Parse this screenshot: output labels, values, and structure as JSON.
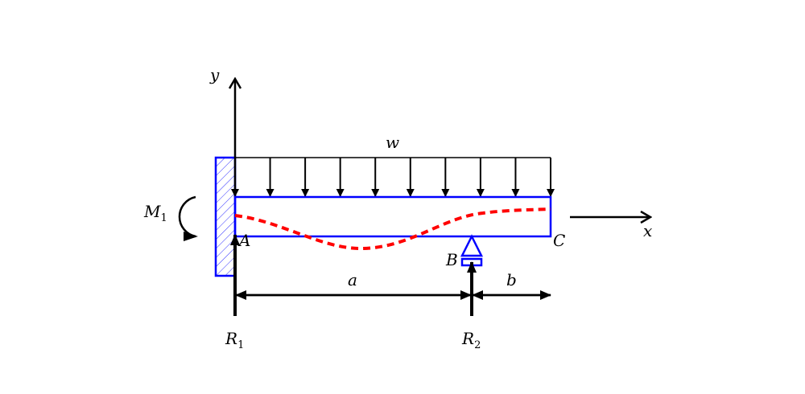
{
  "labels": {
    "y_axis": "y",
    "x_axis": "x",
    "load": "w",
    "moment": "M",
    "moment_sub": "1",
    "point_a": "A",
    "point_b": "B",
    "point_c": "C",
    "dim_a": "a",
    "dim_b": "b",
    "reaction1": "R",
    "reaction1_sub": "1",
    "reaction2": "R",
    "reaction2_sub": "2"
  },
  "colors": {
    "beam": "#0000ff",
    "deflection": "#ff0000",
    "arrows": "#000000"
  }
}
